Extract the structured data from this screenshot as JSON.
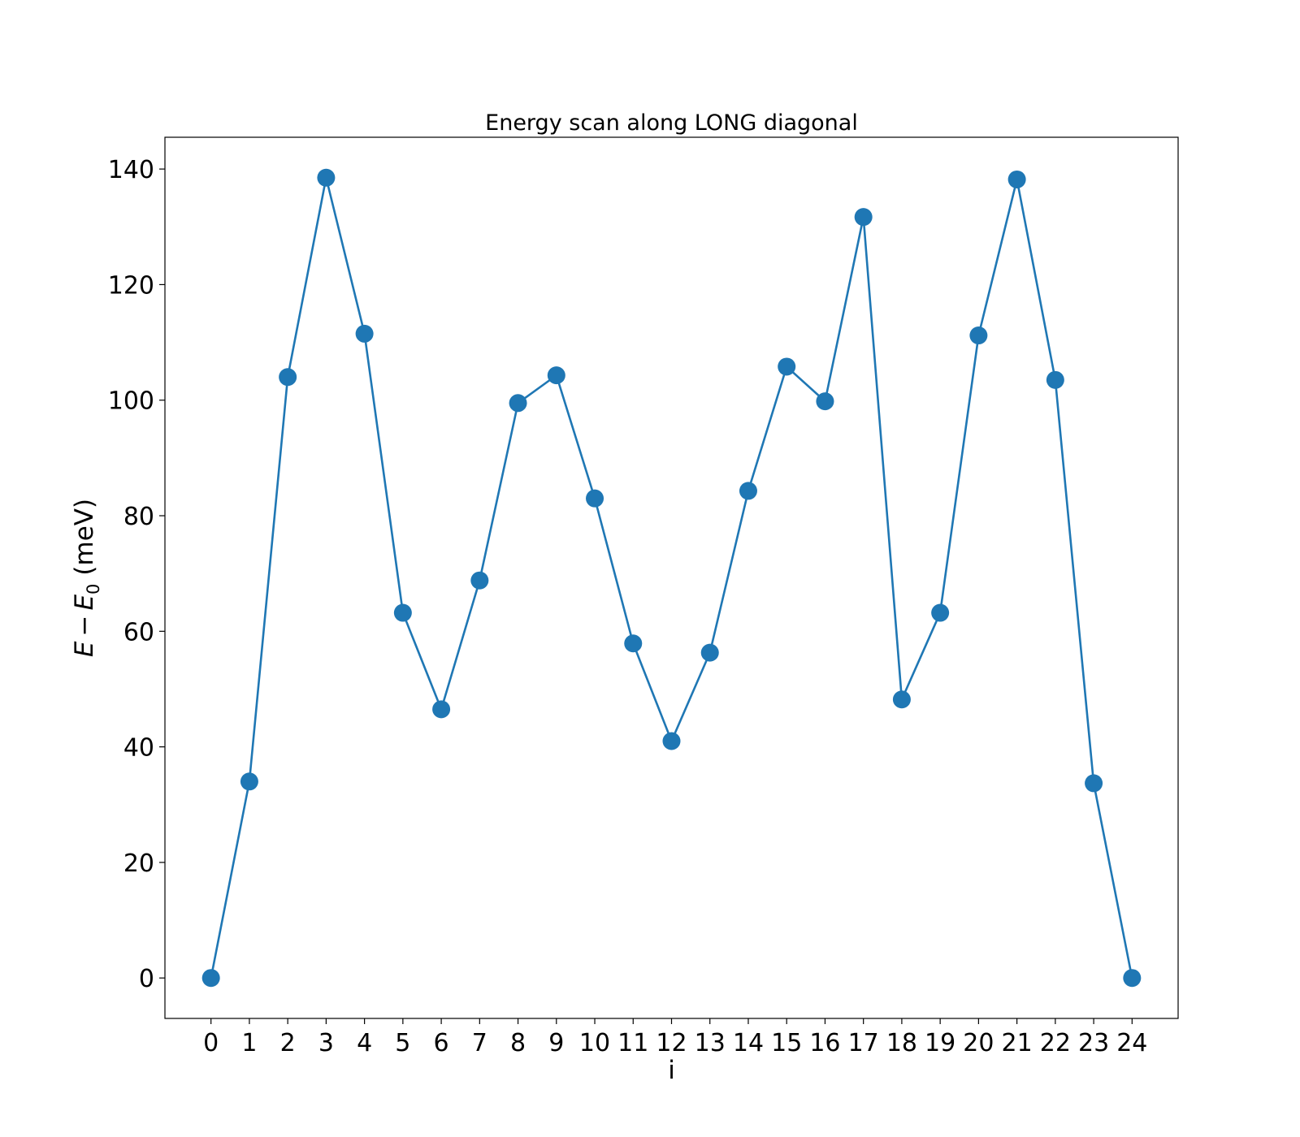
{
  "chart_data": {
    "type": "line",
    "title": "Energy scan along LONG diagonal",
    "xlabel": "i",
    "ylabel": {
      "E": "E",
      "minus": "−",
      "E0": "E",
      "sub": "0",
      "unit": "(meV)"
    },
    "x": [
      0,
      1,
      2,
      3,
      4,
      5,
      6,
      7,
      8,
      9,
      10,
      11,
      12,
      13,
      14,
      15,
      16,
      17,
      18,
      19,
      20,
      21,
      22,
      23,
      24
    ],
    "x_ticks": [
      "0",
      "1",
      "2",
      "3",
      "4",
      "5",
      "6",
      "7",
      "8",
      "9",
      "10",
      "11",
      "12",
      "13",
      "14",
      "15",
      "16",
      "17",
      "18",
      "19",
      "20",
      "21",
      "22",
      "23",
      "24"
    ],
    "y_ticks": [
      "0",
      "20",
      "40",
      "60",
      "80",
      "100",
      "120",
      "140"
    ],
    "xlim": [
      -1.2,
      25.2
    ],
    "ylim": [
      -7,
      145.5
    ],
    "series": [
      {
        "values": [
          0,
          34,
          104,
          138.5,
          111.5,
          63.2,
          46.5,
          68.8,
          99.5,
          104.3,
          83,
          57.9,
          41,
          56.3,
          84.3,
          105.8,
          99.8,
          131.7,
          48.2,
          63.2,
          111.2,
          138.2,
          103.5,
          33.7,
          0
        ],
        "color": "#1f77b4",
        "marker": "circle"
      }
    ],
    "grid": false,
    "legend": "none"
  }
}
